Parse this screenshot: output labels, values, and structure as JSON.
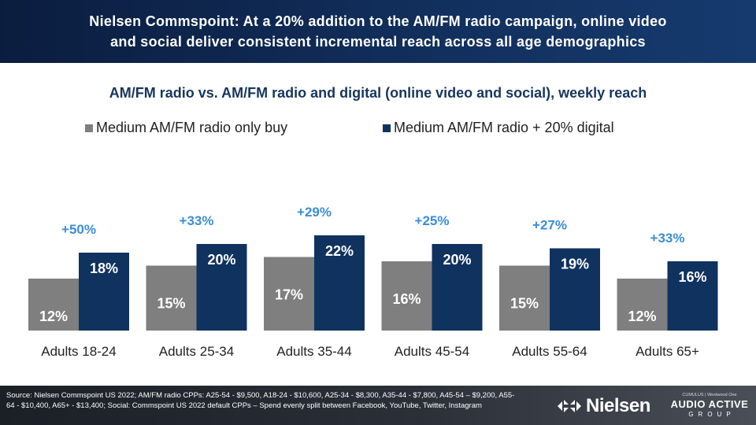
{
  "header": {
    "line1": "Nielsen Commspoint: At a 20% addition to the AM/FM radio campaign, online video",
    "line2": "and social deliver consistent incremental reach across all age demographics"
  },
  "colors": {
    "gray": "#7f7f7f",
    "navy": "#10325f",
    "lift": "#3b8ed8",
    "header_bg": "#0b1d3f"
  },
  "chart_data": {
    "type": "bar",
    "title": "AM/FM radio vs. AM/FM radio and digital (online video and social), weekly reach",
    "categories": [
      "Adults 18-24",
      "Adults 25-34",
      "Adults 35-44",
      "Adults 45-54",
      "Adults 55-64",
      "Adults 65+"
    ],
    "series": [
      {
        "name": "Medium AM/FM radio only buy",
        "values": [
          12,
          15,
          17,
          16,
          15,
          12
        ],
        "labels": [
          "12%",
          "15%",
          "17%",
          "16%",
          "15%",
          "12%"
        ],
        "color": "#7f7f7f"
      },
      {
        "name": "Medium AM/FM radio + 20% digital",
        "values": [
          18,
          20,
          22,
          20,
          19,
          16
        ],
        "labels": [
          "18%",
          "20%",
          "22%",
          "20%",
          "19%",
          "16%"
        ],
        "color": "#10325f"
      }
    ],
    "lift_labels": [
      "+50%",
      "+33%",
      "+29%",
      "+25%",
      "+27%",
      "+33%"
    ],
    "legend_position": "top",
    "grid": false,
    "ylim": [
      0,
      28
    ]
  },
  "footer": {
    "source": "Source: Nielsen Commspoint US 2022; AM/FM radio CPPs: A25-54 - $9,500, A18-24 - $10,600, A25-34 - $8,300, A35-44 - $7,800, A45-54 – $9,200, A55-64 - $10,400, A65+ - $13,400; Social: Commspoint US 2022 default CPPs – Spend evenly split between Facebook, YouTube, Twitter, Instagram",
    "nielsen_logo": "Nielsen",
    "aag_top": "CUMULUS | Westwood One",
    "aag_main": "AUDIO ACTIVE",
    "aag_sub": "GROUP"
  }
}
